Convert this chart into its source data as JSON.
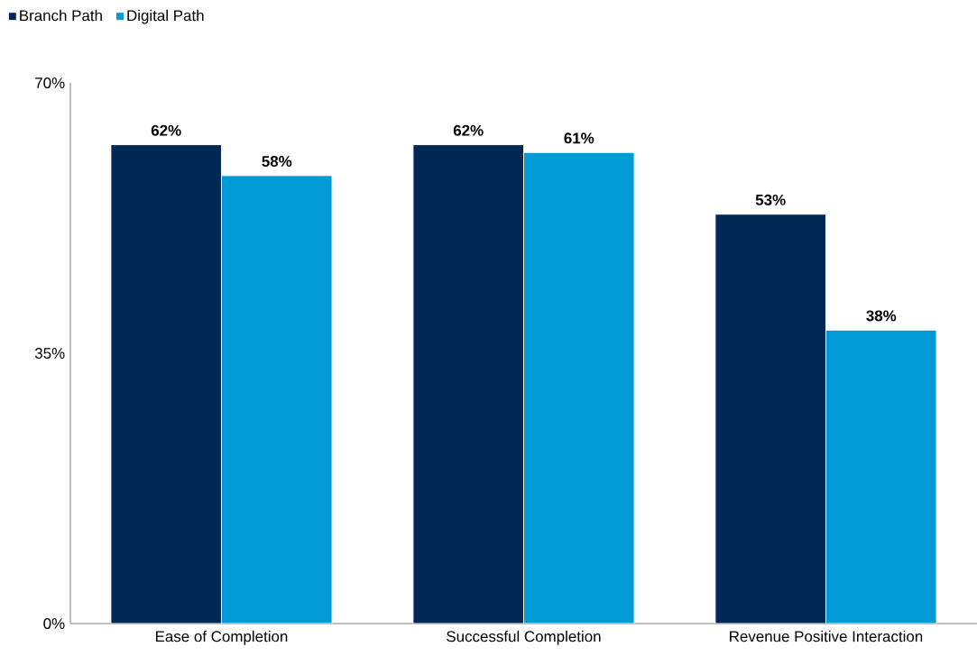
{
  "chart_data": {
    "type": "bar",
    "categories": [
      "Ease of Completion",
      "Successful Completion",
      "Revenue Positive Interaction"
    ],
    "series": [
      {
        "name": "Branch Path",
        "color": "#002855",
        "values": [
          62,
          62,
          53
        ],
        "value_labels": [
          "62%",
          "62%",
          "53%"
        ]
      },
      {
        "name": "Digital Path",
        "color": "#009ad7",
        "values": [
          58,
          61,
          38
        ],
        "value_labels": [
          "58%",
          "61%",
          "38%"
        ]
      }
    ],
    "ylim": [
      0,
      70
    ],
    "yticks": [
      {
        "value": 0,
        "label": "0%"
      },
      {
        "value": 35,
        "label": "35%"
      },
      {
        "value": 70,
        "label": "70%"
      }
    ],
    "legend": "top left"
  }
}
